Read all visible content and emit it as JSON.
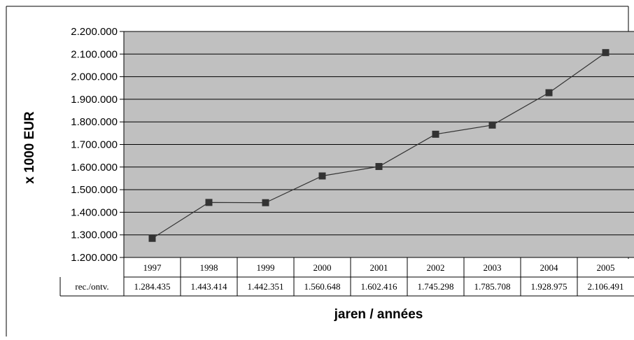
{
  "chart_data": {
    "type": "line",
    "ylabel": "x 1000 EUR",
    "xlabel": "jaren / années",
    "ylim": [
      1200000,
      2200000
    ],
    "yticks": [
      1200000,
      1300000,
      1400000,
      1500000,
      1600000,
      1700000,
      1800000,
      1900000,
      2000000,
      2100000,
      2200000
    ],
    "ytick_labels": [
      "1.200.000",
      "1.300.000",
      "1.400.000",
      "1.500.000",
      "1.600.000",
      "1.700.000",
      "1.800.000",
      "1.900.000",
      "2.000.000",
      "2.100.000",
      "2.200.000"
    ],
    "categories": [
      "1997",
      "1998",
      "1999",
      "2000",
      "2001",
      "2002",
      "2003",
      "2004",
      "2005"
    ],
    "series": [
      {
        "name": "rec./ontv.",
        "values": [
          1284435,
          1443414,
          1442351,
          1560648,
          1602416,
          1745298,
          1785708,
          1928975,
          2106491
        ],
        "value_labels": [
          "1.284.435",
          "1.443.414",
          "1.442.351",
          "1.560.648",
          "1.602.416",
          "1.745.298",
          "1.785.708",
          "1.928.975",
          "2.106.491"
        ]
      }
    ],
    "grid": true,
    "data_table": true,
    "colors": {
      "plot_bg": "#c0c0c0",
      "line": "#333333",
      "marker": "#333333",
      "grid": "#000000"
    }
  }
}
